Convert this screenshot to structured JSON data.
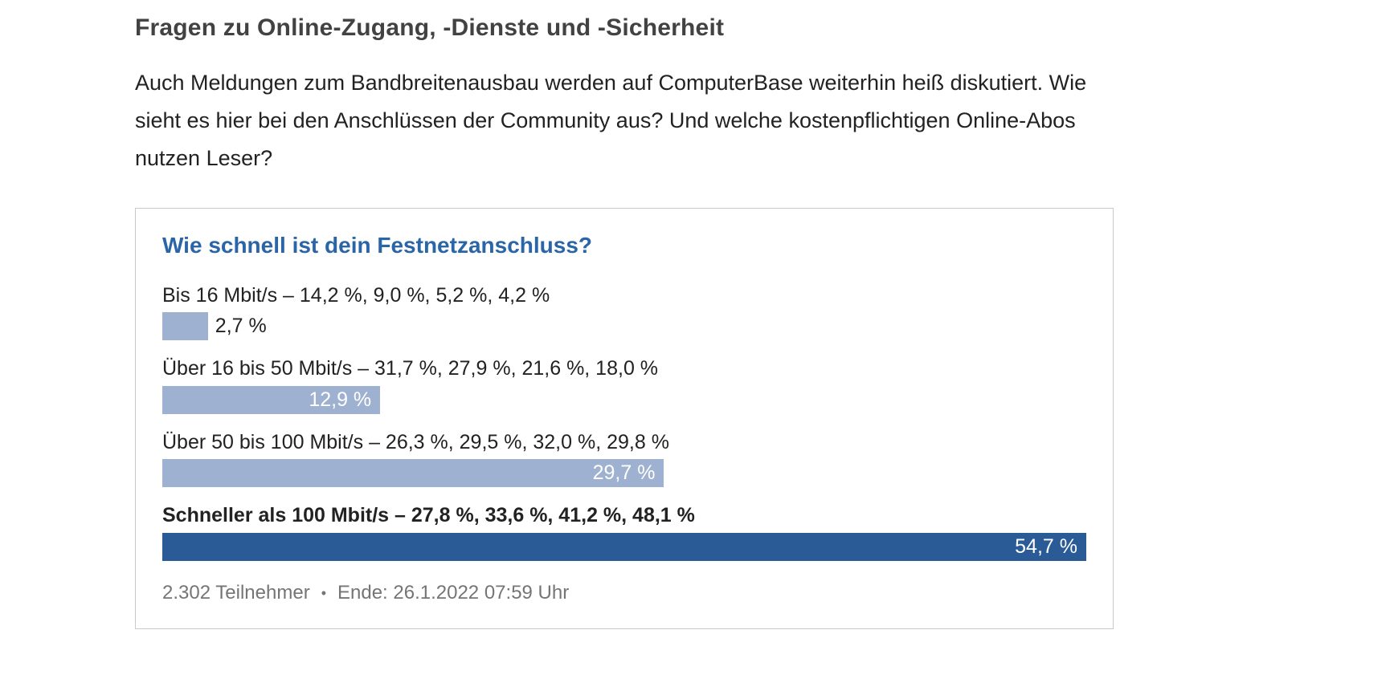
{
  "article": {
    "heading": "Fragen zu Online-Zugang, -Dienste und -Sicherheit",
    "intro": "Auch Meldungen zum Bandbreitenausbau werden auf ComputerBase weiterhin heiß diskutiert. Wie sieht es hier bei den Anschlüssen der Community aus? Und welche kostenpflichtigen Online-Abos nutzen Leser?"
  },
  "poll": {
    "title": "Wie schnell ist dein Festnetzanschluss?",
    "options": [
      {
        "label": "Bis 16 Mbit/s – 14,2 %, 9,0 %, 5,2 %, 4,2 %",
        "value": 2.7,
        "value_label": "2,7 %"
      },
      {
        "label": "Über 16 bis 50 Mbit/s – 31,7 %, 27,9 %, 21,6 %, 18,0 %",
        "value": 12.9,
        "value_label": "12,9 %"
      },
      {
        "label": "Über 50 bis 100 Mbit/s – 26,3 %, 29,5 %, 32,0 %, 29,8 %",
        "value": 29.7,
        "value_label": "29,7 %"
      },
      {
        "label": "Schneller als 100 Mbit/s – 27,8 %, 33,6 %, 41,2 %, 48,1 %",
        "value": 54.7,
        "value_label": "54,7 %"
      }
    ],
    "participants": "2.302 Teilnehmer",
    "separator": "•",
    "end_text": "Ende: 26.1.2022 07:59 Uhr"
  },
  "colors": {
    "title_blue": "#2a65a8",
    "bar_light": "#9fb1d0",
    "bar_dark": "#2a5b96",
    "footer_gray": "#757575"
  },
  "chart_data": {
    "type": "bar",
    "orientation": "horizontal",
    "title": "Wie schnell ist dein Festnetzanschluss?",
    "categories": [
      "Bis 16 Mbit/s",
      "Über 16 bis 50 Mbit/s",
      "Über 50 bis 100 Mbit/s",
      "Schneller als 100 Mbit/s"
    ],
    "values": [
      2.7,
      12.9,
      29.7,
      54.7
    ],
    "value_labels": [
      "2,7 %",
      "12,9 %",
      "29,7 %",
      "54,7 %"
    ],
    "previous_years_values_shown_in_labels": [
      [
        14.2,
        9.0,
        5.2,
        4.2
      ],
      [
        31.7,
        27.9,
        21.6,
        18.0
      ],
      [
        26.3,
        29.5,
        32.0,
        29.8
      ],
      [
        27.8,
        33.6,
        41.2,
        48.1
      ]
    ],
    "unit": "%",
    "xlim": [
      0,
      54.7
    ],
    "highlight_index": 3,
    "legend": "none",
    "grid": false,
    "footnote": "2.302 Teilnehmer • Ende: 26.1.2022 07:59 Uhr"
  }
}
